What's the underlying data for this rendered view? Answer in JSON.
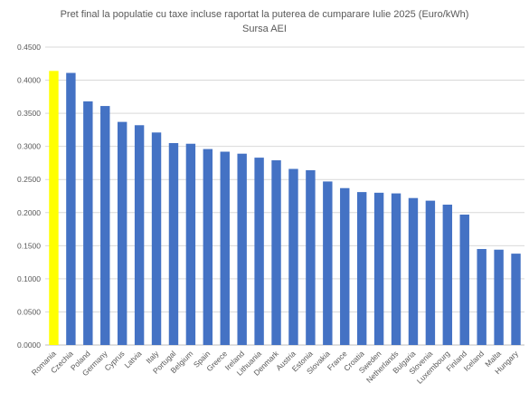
{
  "chart_data": {
    "type": "bar",
    "title": "Pret final la populatie cu taxe incluse raportat la puterea de cumparare Iulie 2025 (Euro/kWh)",
    "subtitle": "Sursa AEI",
    "xlabel": "",
    "ylabel": "",
    "ylim": [
      0,
      0.45
    ],
    "yticks": [
      "0.0000",
      "0.0500",
      "0.1000",
      "0.1500",
      "0.2000",
      "0.2500",
      "0.3000",
      "0.3500",
      "0.4000",
      "0.4500"
    ],
    "grid": true,
    "legend": "none",
    "categories": [
      "Romania",
      "Czechia",
      "Poland",
      "Germany",
      "Cyprus",
      "Latvia",
      "Italy",
      "Portugal",
      "Belgium",
      "Spain",
      "Greece",
      "Ireland",
      "Lithuania",
      "Denmark",
      "Austria",
      "Estonia",
      "Slovakia",
      "France",
      "Croatia",
      "Sweden",
      "Netherlands",
      "Bulgaria",
      "Slovenia",
      "Luxembourg",
      "Finland",
      "Iceland",
      "Malta",
      "Hungary"
    ],
    "values": [
      0.414,
      0.411,
      0.368,
      0.361,
      0.337,
      0.332,
      0.321,
      0.305,
      0.304,
      0.296,
      0.292,
      0.289,
      0.283,
      0.279,
      0.266,
      0.264,
      0.247,
      0.237,
      0.231,
      0.23,
      0.229,
      0.222,
      0.218,
      0.212,
      0.197,
      0.145,
      0.144,
      0.138
    ],
    "colors": {
      "default": "#4472C4",
      "highlight": "#FFFF00",
      "highlight_category": "Romania",
      "grid": "#d9d9d9",
      "axis": "#bfbfbf"
    }
  }
}
